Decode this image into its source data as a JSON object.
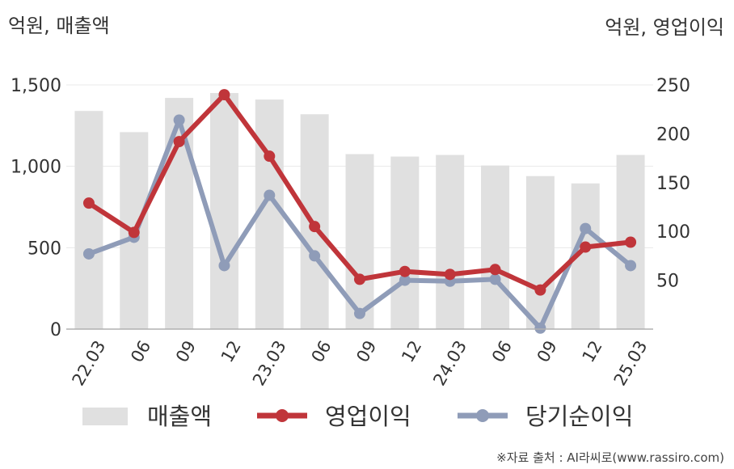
{
  "chart_data": {
    "type": "bar+line",
    "left_unit": "억원, 매출액",
    "right_unit": "억원, 영업이익",
    "categories": [
      "22.03",
      "06",
      "09",
      "12",
      "23.03",
      "06",
      "09",
      "12",
      "24.03",
      "06",
      "09",
      "12",
      "25.03"
    ],
    "y_left": {
      "ylim": [
        0,
        1500
      ],
      "ticks": [
        "0",
        "500",
        "1,000",
        "1,500"
      ],
      "tick_values": [
        0,
        500,
        1000,
        1500
      ]
    },
    "y_right": {
      "ylim": [
        0,
        250
      ],
      "ticks": [
        "50",
        "100",
        "150",
        "200",
        "250"
      ],
      "tick_values": [
        50,
        100,
        150,
        200,
        250
      ]
    },
    "series": [
      {
        "name": "매출액",
        "kind": "bar",
        "axis": "left",
        "color": "#e0e0e0",
        "values": [
          1340,
          1210,
          1420,
          1450,
          1410,
          1320,
          1075,
          1060,
          1070,
          1005,
          940,
          895,
          1070
        ]
      },
      {
        "name": "영업이익",
        "kind": "line",
        "axis": "right",
        "color": "#c0353a",
        "values": [
          129,
          99,
          192,
          240,
          177,
          105,
          51,
          59,
          56,
          61,
          40,
          84,
          89
        ]
      },
      {
        "name": "당기순이익",
        "kind": "line",
        "axis": "right",
        "color": "#8f9cb8",
        "values": [
          77,
          94,
          214,
          65,
          137,
          75,
          16,
          50,
          49,
          51,
          1,
          103,
          65
        ]
      }
    ],
    "grid": true,
    "legend": "bottom"
  },
  "source": "※자료 출처 : AI라씨로(www.rassiro.com)"
}
